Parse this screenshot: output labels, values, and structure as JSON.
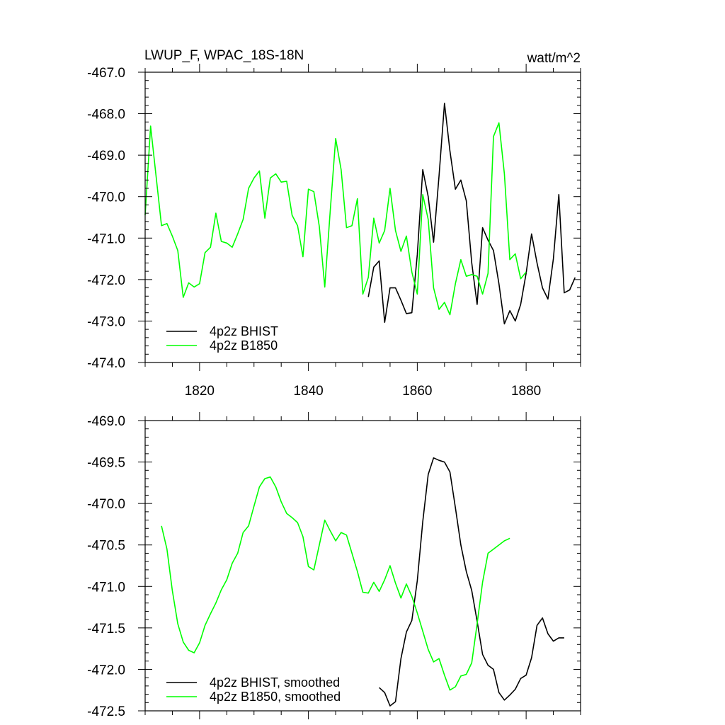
{
  "colors": {
    "bhist": "#000000",
    "b1850": "#00ff00",
    "axis": "#000000"
  },
  "chart_data": [
    {
      "type": "line",
      "title": "LWUP_F, WPAC_18S-18N",
      "units": "watt/m^2",
      "xlim": [
        1810,
        1890
      ],
      "ylim": [
        -474,
        -467
      ],
      "xticks": [
        1820,
        1840,
        1860,
        1880
      ],
      "xtick_labels": [
        "1820",
        "1840",
        "1860",
        "1880"
      ],
      "yticks": [
        -474,
        -473,
        -472,
        -471,
        -470,
        -469,
        -468,
        -467
      ],
      "ytick_labels": [
        "-474.0",
        "-473.0",
        "-472.0",
        "-471.0",
        "-470.0",
        "-469.0",
        "-468.0",
        "-467.0"
      ],
      "legend_position": "bottom-left",
      "series": [
        {
          "name": "4p2z BHIST",
          "color": "#000000",
          "x": [
            1851,
            1852,
            1853,
            1854,
            1855,
            1856,
            1857,
            1858,
            1859,
            1860,
            1861,
            1862,
            1863,
            1864,
            1865,
            1866,
            1867,
            1868,
            1869,
            1870,
            1871,
            1872,
            1873,
            1874,
            1875,
            1876,
            1877,
            1878,
            1879,
            1880,
            1881,
            1882,
            1883,
            1884,
            1885,
            1886,
            1887,
            1888,
            1889
          ],
          "y": [
            -472.42,
            -471.7,
            -471.55,
            -473.03,
            -472.2,
            -472.2,
            -472.5,
            -472.82,
            -472.8,
            -471.4,
            -469.35,
            -470.0,
            -471.1,
            -469.5,
            -467.75,
            -468.9,
            -469.82,
            -469.6,
            -470.1,
            -471.6,
            -472.6,
            -470.75,
            -471.05,
            -471.3,
            -472.1,
            -473.07,
            -472.75,
            -473.0,
            -472.6,
            -471.85,
            -470.9,
            -471.6,
            -472.2,
            -472.47,
            -471.5,
            -469.95,
            -472.32,
            -472.25,
            -471.95
          ]
        },
        {
          "name": "4p2z B1850",
          "color": "#00ff00",
          "x": [
            1810,
            1811,
            1812,
            1813,
            1814,
            1815,
            1816,
            1817,
            1818,
            1819,
            1820,
            1821,
            1822,
            1823,
            1824,
            1825,
            1826,
            1827,
            1828,
            1829,
            1830,
            1831,
            1832,
            1833,
            1834,
            1835,
            1836,
            1837,
            1838,
            1839,
            1840,
            1841,
            1842,
            1843,
            1844,
            1845,
            1846,
            1847,
            1848,
            1849,
            1850,
            1851,
            1852,
            1853,
            1854,
            1855,
            1856,
            1857,
            1858,
            1859,
            1860,
            1861,
            1862,
            1863,
            1864,
            1865,
            1866,
            1867,
            1868,
            1869,
            1870,
            1871,
            1872,
            1873,
            1874,
            1875,
            1876,
            1877,
            1878,
            1879,
            1880
          ],
          "y": [
            -470.45,
            -468.3,
            -469.5,
            -470.7,
            -470.65,
            -470.95,
            -471.3,
            -472.43,
            -472.08,
            -472.18,
            -472.1,
            -471.35,
            -471.22,
            -470.4,
            -471.08,
            -471.12,
            -471.22,
            -470.9,
            -470.55,
            -469.8,
            -469.55,
            -469.38,
            -470.52,
            -469.55,
            -469.45,
            -469.65,
            -469.63,
            -470.45,
            -470.7,
            -471.45,
            -469.82,
            -469.88,
            -470.72,
            -472.18,
            -470.35,
            -468.6,
            -469.35,
            -470.75,
            -470.7,
            -470.05,
            -472.35,
            -471.95,
            -470.52,
            -471.12,
            -470.82,
            -469.8,
            -470.82,
            -471.32,
            -470.95,
            -471.82,
            -472.35,
            -469.95,
            -470.55,
            -472.2,
            -472.72,
            -472.55,
            -472.85,
            -472.1,
            -471.52,
            -471.92,
            -471.88,
            -471.92,
            -472.35,
            -471.85,
            -468.55,
            -468.22,
            -469.45,
            -471.52,
            -471.38,
            -471.98,
            -471.82
          ]
        }
      ]
    },
    {
      "type": "line",
      "title": "",
      "xlim": [
        1810,
        1890
      ],
      "ylim": [
        -472.5,
        -469.0
      ],
      "xticks": [
        1820,
        1840,
        1860,
        1880
      ],
      "xtick_labels": [],
      "yticks": [
        -472.5,
        -472.0,
        -471.5,
        -471.0,
        -470.5,
        -470.0,
        -469.5,
        -469.0
      ],
      "ytick_labels": [
        "-472.5",
        "-472.0",
        "-471.5",
        "-471.0",
        "-470.5",
        "-470.0",
        "-469.5",
        "-469.0"
      ],
      "legend_position": "bottom-left",
      "series": [
        {
          "name": "4p2z BHIST, smoothed",
          "color": "#000000",
          "x": [
            1853,
            1854,
            1855,
            1856,
            1857,
            1858,
            1859,
            1860,
            1861,
            1862,
            1863,
            1864,
            1865,
            1866,
            1867,
            1868,
            1869,
            1870,
            1871,
            1872,
            1873,
            1874,
            1875,
            1876,
            1877,
            1878,
            1879,
            1880,
            1881,
            1882,
            1883,
            1884,
            1885,
            1886,
            1887
          ],
          "y": [
            -472.22,
            -472.28,
            -472.44,
            -472.39,
            -471.87,
            -471.55,
            -471.41,
            -470.93,
            -470.22,
            -469.65,
            -469.45,
            -469.48,
            -469.5,
            -469.62,
            -470.05,
            -470.5,
            -470.82,
            -471.05,
            -471.42,
            -471.82,
            -471.95,
            -472.0,
            -472.28,
            -472.37,
            -472.31,
            -472.24,
            -472.11,
            -472.07,
            -471.86,
            -471.47,
            -471.38,
            -471.57,
            -471.66,
            -471.62,
            -471.62
          ]
        },
        {
          "name": "4p2z B1850, smoothed",
          "color": "#00ff00",
          "x": [
            1813,
            1814,
            1815,
            1816,
            1817,
            1818,
            1819,
            1820,
            1821,
            1822,
            1823,
            1824,
            1825,
            1826,
            1827,
            1828,
            1829,
            1830,
            1831,
            1832,
            1833,
            1834,
            1835,
            1836,
            1837,
            1838,
            1839,
            1840,
            1841,
            1842,
            1843,
            1844,
            1845,
            1846,
            1847,
            1848,
            1849,
            1850,
            1851,
            1852,
            1853,
            1854,
            1855,
            1856,
            1857,
            1858,
            1859,
            1860,
            1861,
            1862,
            1863,
            1864,
            1865,
            1866,
            1867,
            1868,
            1869,
            1870,
            1871,
            1872,
            1873,
            1874,
            1875,
            1876,
            1877
          ],
          "y": [
            -470.27,
            -470.55,
            -471.05,
            -471.45,
            -471.67,
            -471.77,
            -471.8,
            -471.68,
            -471.47,
            -471.33,
            -471.2,
            -471.04,
            -470.92,
            -470.72,
            -470.6,
            -470.35,
            -470.27,
            -470.03,
            -469.8,
            -469.7,
            -469.68,
            -469.8,
            -469.98,
            -470.12,
            -470.17,
            -470.23,
            -470.4,
            -470.76,
            -470.8,
            -470.5,
            -470.2,
            -470.33,
            -470.45,
            -470.35,
            -470.38,
            -470.6,
            -470.82,
            -471.07,
            -471.08,
            -470.95,
            -471.06,
            -470.92,
            -470.75,
            -470.96,
            -471.14,
            -470.97,
            -471.12,
            -471.32,
            -471.54,
            -471.76,
            -471.91,
            -471.87,
            -472.07,
            -472.25,
            -472.21,
            -472.08,
            -472.06,
            -471.92,
            -471.45,
            -470.95,
            -470.6,
            -470.55,
            -470.5,
            -470.45,
            -470.42
          ]
        }
      ]
    }
  ]
}
